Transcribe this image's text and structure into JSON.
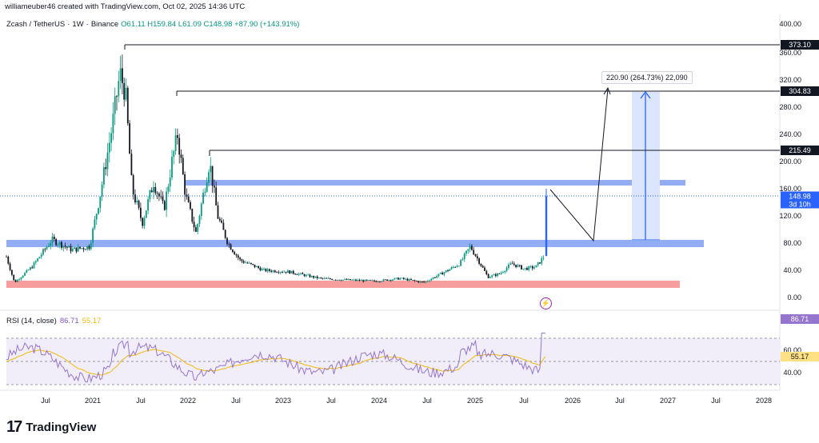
{
  "header": {
    "attribution": "williameuber46 created with TradingView.com, Oct 02, 2025 14:36 UTC"
  },
  "symbol": {
    "name": "Zcash / TetherUS",
    "interval": "1W",
    "exchange": "Binance",
    "ohlc_text": "O61.11 H159.84 L61.09 C148.98 +87.90 (+143.91%)"
  },
  "rsi": {
    "label": "RSI (14, close)",
    "value": "86.71",
    "ma_value": "55.17",
    "tag_value": "86.71",
    "tag_ma": "55.17",
    "ticks": [
      "60.00",
      "40.00"
    ]
  },
  "price_axis": {
    "ticks": [
      "400.00",
      "360.00",
      "320.00",
      "280.00",
      "240.00",
      "200.00",
      "160.00",
      "120.00",
      "80.00",
      "40.00",
      "0.00"
    ],
    "level_tags": [
      "373.10",
      "304.83",
      "215.49"
    ],
    "current_price": "148.98",
    "countdown": "3d 10h"
  },
  "time_axis": {
    "ticks": [
      "Jul",
      "2021",
      "Jul",
      "2022",
      "Jul",
      "2023",
      "Jul",
      "2024",
      "Jul",
      "2025",
      "Jul",
      "2026",
      "Jul",
      "2027",
      "Jul",
      "2028"
    ]
  },
  "measure": {
    "label": "220.90 (264.73%) 22,090"
  },
  "branding": {
    "name": "TradingView",
    "mark": "17"
  },
  "colors": {
    "up": "#089981",
    "down": "#131722",
    "last_candles": "#2962ff",
    "zone_blue": "#6f91f2",
    "zone_red": "#f48c8c",
    "rsi_line": "#9575cd",
    "rsi_ma": "#f0b90b",
    "measure_fill": "#dbe5fd",
    "measure_line": "#2962ff"
  }
}
